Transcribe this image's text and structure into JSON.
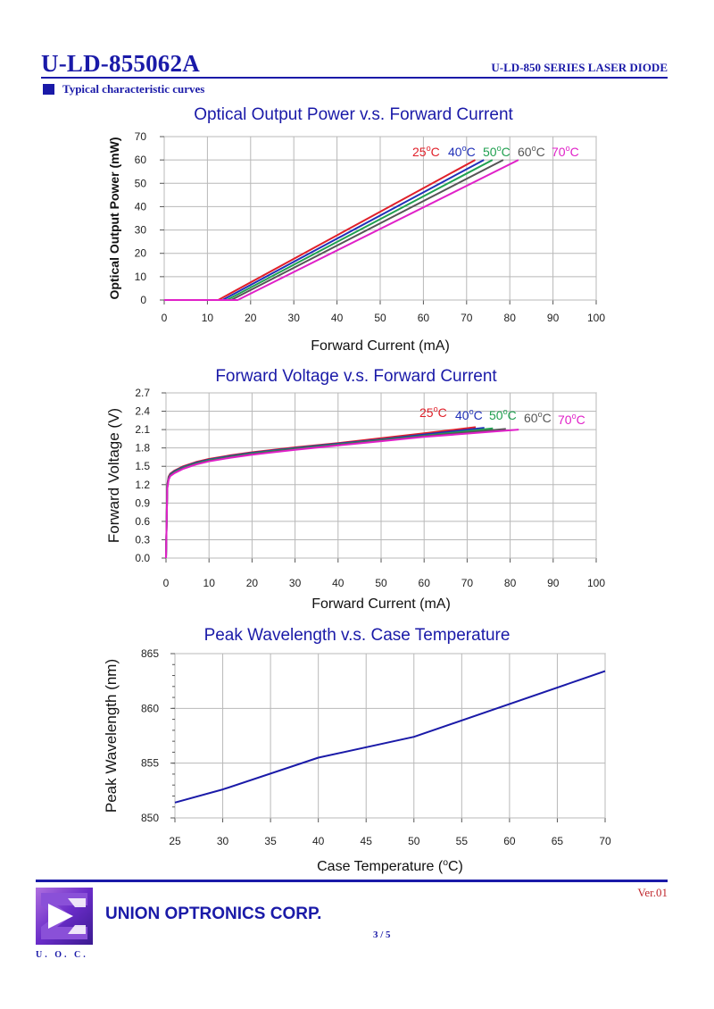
{
  "header": {
    "part_number": "U-LD-855062A",
    "series": "U-LD-850 SERIES LASER DIODE",
    "section_title": "Typical characteristic curves"
  },
  "footer": {
    "company": "UNION OPTRONICS CORP.",
    "logo_caption": "U. O. C.",
    "page": "3 / 5",
    "version": "Ver.01"
  },
  "chart_data": [
    {
      "type": "line",
      "title": "Optical Output Power v.s. Forward Current",
      "xlabel": "Forward Current (mA)",
      "ylabel": "Optical Output Power (mW)",
      "xlim": [
        0,
        100
      ],
      "ylim": [
        0,
        70
      ],
      "xticks": [
        "0",
        "10",
        "20",
        "30",
        "40",
        "50",
        "60",
        "70",
        "80",
        "90",
        "100"
      ],
      "yticks": [
        "0",
        "10",
        "20",
        "30",
        "40",
        "50",
        "60",
        "70"
      ],
      "grid": true,
      "legend_placement": "top-right",
      "series": [
        {
          "name": "25°C",
          "color": "#e0202a",
          "x": [
            0,
            12.5,
            72
          ],
          "y": [
            0,
            0,
            60
          ]
        },
        {
          "name": "40°C",
          "color": "#2030b8",
          "x": [
            0,
            13.5,
            74
          ],
          "y": [
            0,
            0,
            60
          ]
        },
        {
          "name": "50°C",
          "color": "#20a050",
          "x": [
            0,
            14.5,
            76
          ],
          "y": [
            0,
            0,
            60
          ]
        },
        {
          "name": "60°C",
          "color": "#555555",
          "x": [
            0,
            15.5,
            78.5
          ],
          "y": [
            0,
            0,
            60
          ]
        },
        {
          "name": "70°C",
          "color": "#e020c8",
          "x": [
            0,
            17,
            82
          ],
          "y": [
            0,
            0,
            60
          ]
        }
      ]
    },
    {
      "type": "line",
      "title": "Forward Voltage v.s. Forward Current",
      "xlabel": "Forward Current (mA)",
      "ylabel": "Forward Voltage (V)",
      "xlim": [
        0,
        100
      ],
      "ylim": [
        0,
        2.7
      ],
      "xticks": [
        "0",
        "10",
        "20",
        "30",
        "40",
        "50",
        "60",
        "70",
        "80",
        "90",
        "100"
      ],
      "yticks": [
        "0.0",
        "0.3",
        "0.6",
        "0.9",
        "1.2",
        "1.5",
        "1.8",
        "2.1",
        "2.4",
        "2.7"
      ],
      "grid": true,
      "legend_placement": "top-right",
      "series": [
        {
          "name": "25°C",
          "color": "#e0202a",
          "x": [
            0,
            0.3,
            0.6,
            1,
            2,
            4,
            7,
            10,
            15,
            20,
            30,
            40,
            50,
            60,
            72
          ],
          "y": [
            0,
            1.2,
            1.33,
            1.38,
            1.43,
            1.5,
            1.57,
            1.62,
            1.68,
            1.73,
            1.81,
            1.88,
            1.96,
            2.04,
            2.14
          ]
        },
        {
          "name": "40°C",
          "color": "#2030b8",
          "x": [
            0,
            0.3,
            0.6,
            1,
            2,
            4,
            7,
            10,
            15,
            20,
            30,
            40,
            50,
            60,
            74
          ],
          "y": [
            0,
            1.18,
            1.31,
            1.37,
            1.42,
            1.49,
            1.56,
            1.61,
            1.67,
            1.72,
            1.8,
            1.87,
            1.94,
            2.02,
            2.13
          ]
        },
        {
          "name": "50°C",
          "color": "#20a050",
          "x": [
            0,
            0.3,
            0.6,
            1,
            2,
            4,
            7,
            10,
            15,
            20,
            30,
            40,
            50,
            60,
            76
          ],
          "y": [
            0,
            1.16,
            1.3,
            1.36,
            1.41,
            1.48,
            1.55,
            1.6,
            1.66,
            1.71,
            1.79,
            1.86,
            1.93,
            2.0,
            2.12
          ]
        },
        {
          "name": "60°C",
          "color": "#555555",
          "x": [
            0,
            0.3,
            0.6,
            1,
            2,
            4,
            7,
            10,
            15,
            20,
            30,
            40,
            50,
            60,
            79
          ],
          "y": [
            0,
            1.15,
            1.29,
            1.35,
            1.4,
            1.47,
            1.54,
            1.59,
            1.65,
            1.7,
            1.78,
            1.85,
            1.92,
            1.99,
            2.11
          ]
        },
        {
          "name": "70°C",
          "color": "#e020c8",
          "x": [
            0,
            0.3,
            0.6,
            1,
            2,
            4,
            7,
            10,
            15,
            20,
            30,
            40,
            50,
            60,
            82
          ],
          "y": [
            0,
            1.13,
            1.28,
            1.34,
            1.39,
            1.46,
            1.53,
            1.58,
            1.64,
            1.69,
            1.77,
            1.84,
            1.91,
            1.98,
            2.1
          ]
        }
      ]
    },
    {
      "type": "line",
      "title": "Peak Wavelength v.s. Case Temperature",
      "xlabel": "Case Temperature (°C)",
      "ylabel": "Peak Wavelength (nm)",
      "xlim": [
        25,
        70
      ],
      "ylim": [
        850,
        865
      ],
      "xticks": [
        "25",
        "30",
        "35",
        "40",
        "45",
        "50",
        "55",
        "60",
        "65",
        "70"
      ],
      "yticks": [
        "850",
        "855",
        "860",
        "865"
      ],
      "grid": true,
      "series": [
        {
          "name": "Peak Wavelength",
          "color": "#1a1aa8",
          "x": [
            25,
            30,
            40,
            50,
            70
          ],
          "y": [
            851.4,
            852.6,
            855.5,
            857.4,
            863.4
          ]
        }
      ]
    }
  ]
}
